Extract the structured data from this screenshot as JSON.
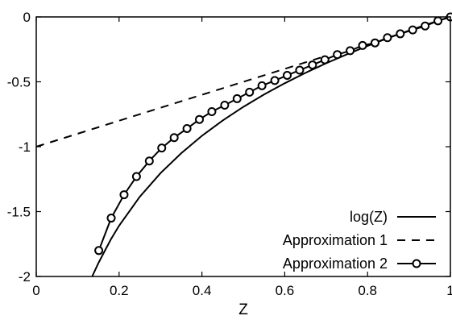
{
  "chart_data": {
    "type": "line",
    "title": "",
    "xlabel": "Z",
    "ylabel": "",
    "xlim": [
      0,
      1
    ],
    "ylim": [
      -2,
      0
    ],
    "grid": false,
    "legend_position": "bottom-right",
    "xticks": [
      0,
      0.2,
      0.4,
      0.6,
      0.8,
      1
    ],
    "xtick_labels": [
      "0",
      "0.2",
      "0.4",
      "0.6",
      "0.8",
      "1"
    ],
    "yticks": [
      0,
      -0.5,
      -1,
      -1.5,
      -2
    ],
    "ytick_labels": [
      "0",
      "-0.5",
      "-1",
      "-1.5",
      "-2"
    ],
    "series": [
      {
        "name": "log(Z)",
        "style": "solid",
        "marker": "none",
        "x": [
          0.135,
          0.15,
          0.18,
          0.2,
          0.25,
          0.3,
          0.35,
          0.4,
          0.45,
          0.5,
          0.55,
          0.6,
          0.65,
          0.7,
          0.75,
          0.8,
          0.85,
          0.9,
          0.95,
          1.0
        ],
        "y": [
          -2.0,
          -1.897,
          -1.715,
          -1.609,
          -1.386,
          -1.204,
          -1.05,
          -0.916,
          -0.799,
          -0.693,
          -0.598,
          -0.511,
          -0.431,
          -0.357,
          -0.288,
          -0.223,
          -0.163,
          -0.105,
          -0.051,
          0.0
        ]
      },
      {
        "name": "Approximation 1",
        "style": "dashed",
        "marker": "none",
        "x": [
          0,
          0.7
        ],
        "y": [
          -1.0,
          -0.3
        ]
      },
      {
        "name": "Approximation 2",
        "style": "solid",
        "marker": "circle",
        "x": [
          0.151,
          0.181,
          0.212,
          0.242,
          0.273,
          0.303,
          0.333,
          0.364,
          0.394,
          0.424,
          0.455,
          0.485,
          0.515,
          0.545,
          0.576,
          0.606,
          0.636,
          0.667,
          0.697,
          0.727,
          0.758,
          0.788,
          0.818,
          0.848,
          0.879,
          0.909,
          0.939,
          0.97,
          1.0
        ],
        "y": [
          -1.8,
          -1.55,
          -1.37,
          -1.23,
          -1.11,
          -1.01,
          -0.93,
          -0.86,
          -0.79,
          -0.73,
          -0.68,
          -0.63,
          -0.58,
          -0.53,
          -0.49,
          -0.45,
          -0.41,
          -0.37,
          -0.33,
          -0.29,
          -0.26,
          -0.22,
          -0.2,
          -0.16,
          -0.13,
          -0.1,
          -0.07,
          -0.03,
          0.0
        ]
      }
    ]
  }
}
